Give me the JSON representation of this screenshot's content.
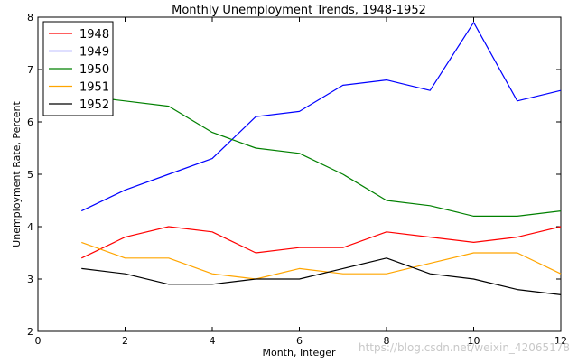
{
  "chart_data": {
    "type": "line",
    "title": "Monthly Unemployment Trends, 1948-1952",
    "xlabel": "Month, Integer",
    "ylabel": "Unemployment Rate, Percent",
    "xlim": [
      0,
      12
    ],
    "ylim": [
      2,
      8
    ],
    "xticks": [
      0,
      2,
      4,
      6,
      8,
      10,
      12
    ],
    "yticks": [
      2,
      3,
      4,
      5,
      6,
      7,
      8
    ],
    "grid": false,
    "legend_position": "top-left",
    "x": [
      1,
      2,
      3,
      4,
      5,
      6,
      7,
      8,
      9,
      10,
      11,
      12
    ],
    "series": [
      {
        "name": "1948",
        "color": "#ff0000",
        "values": [
          3.4,
          3.8,
          4.0,
          3.9,
          3.5,
          3.6,
          3.6,
          3.9,
          3.8,
          3.7,
          3.8,
          4.0
        ]
      },
      {
        "name": "1949",
        "color": "#0000ff",
        "values": [
          4.3,
          4.7,
          5.0,
          5.3,
          6.1,
          6.2,
          6.7,
          6.8,
          6.6,
          7.9,
          6.4,
          6.6
        ]
      },
      {
        "name": "1950",
        "color": "#008000",
        "values": [
          6.5,
          6.4,
          6.3,
          5.8,
          5.5,
          5.4,
          5.0,
          4.5,
          4.4,
          4.2,
          4.2,
          4.3
        ]
      },
      {
        "name": "1951",
        "color": "#ffa500",
        "values": [
          3.7,
          3.4,
          3.4,
          3.1,
          3.0,
          3.2,
          3.1,
          3.1,
          3.3,
          3.5,
          3.5,
          3.1
        ]
      },
      {
        "name": "1952",
        "color": "#000000",
        "values": [
          3.2,
          3.1,
          2.9,
          2.9,
          3.0,
          3.0,
          3.2,
          3.4,
          3.1,
          3.0,
          2.8,
          2.7
        ]
      }
    ]
  },
  "watermark": "https://blog.csdn.net/weixin_42065178"
}
